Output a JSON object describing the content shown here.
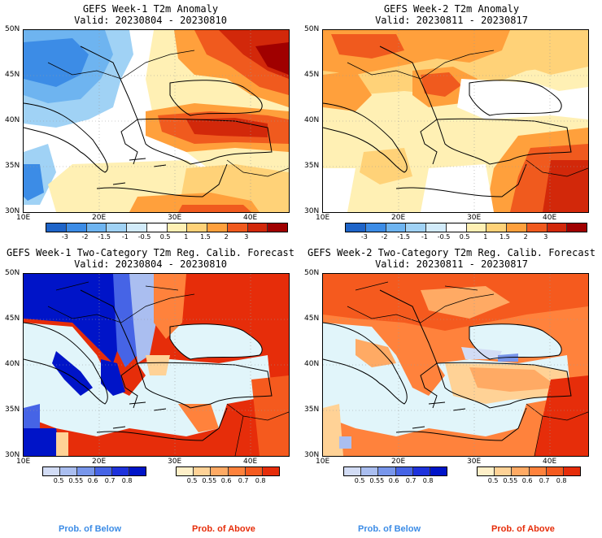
{
  "panels": {
    "tl": {
      "title": "GEFS Week-1 T2m Anomaly",
      "valid": "Valid: 20230804 - 20230810"
    },
    "tr": {
      "title": "GEFS Week-2 T2m Anomaly",
      "valid": "Valid: 20230811 - 20230817"
    },
    "bl": {
      "title": "GEFS Week-1 Two-Category T2m Reg. Calib. Forecast",
      "valid": "Valid: 20230804 - 20230810"
    },
    "br": {
      "title": "GEFS Week-2 Two-Category T2m Reg. Calib. Forecast",
      "valid": "Valid: 20230811 - 20230817"
    }
  },
  "lat_labels": [
    "50N",
    "45N",
    "40N",
    "35N",
    "30N"
  ],
  "lon_labels": [
    "10E",
    "20E",
    "30E",
    "40E"
  ],
  "anomaly_colorbar": {
    "labels": [
      "-3",
      "-2",
      "-1.5",
      "-1",
      "-0.5",
      "0.5",
      "1",
      "1.5",
      "2",
      "3"
    ],
    "colors": [
      "#1e64c8",
      "#3c8ce6",
      "#6eb4f0",
      "#a0d2f5",
      "#d2ebfa",
      "#ffffff",
      "#fff0b4",
      "#ffd278",
      "#ffa03c",
      "#f05a1e",
      "#d2280a",
      "#a00000"
    ]
  },
  "prob_below_colorbar": {
    "labels": [
      "0.5",
      "0.55",
      "0.6",
      "0.7",
      "0.8"
    ],
    "colors": [
      "#d2dcf5",
      "#aabef0",
      "#7896eb",
      "#4664e6",
      "#1e32dc",
      "#0014c8"
    ]
  },
  "prob_above_colorbar": {
    "labels": [
      "0.5",
      "0.55",
      "0.6",
      "0.7",
      "0.8"
    ],
    "colors": [
      "#fff0c8",
      "#ffd296",
      "#ffaa64",
      "#ff823c",
      "#f55a1e",
      "#e62d0a"
    ]
  },
  "footer": {
    "below_left": "Prob. of Below",
    "above_left": "Prob. of Above",
    "below_right": "Prob. of Below",
    "above_right": "Prob. of Above",
    "below_color": "#3c8ce6",
    "above_color": "#e62d0a"
  }
}
